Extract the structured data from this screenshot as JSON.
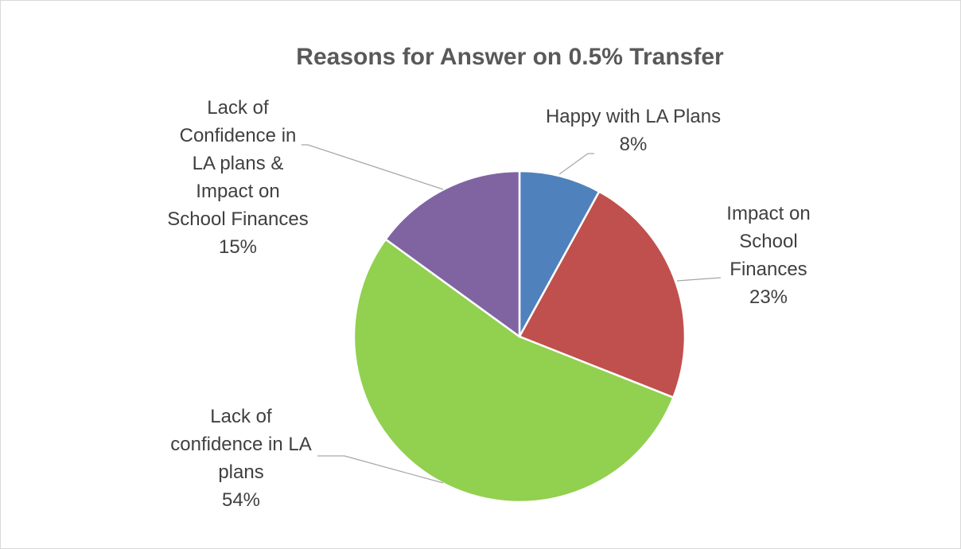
{
  "chart_data": {
    "type": "pie",
    "title": "Reasons for Answer on 0.5% Transfer",
    "categories": [
      "Happy with LA Plans",
      "Impact on School Finances",
      "Lack of confidence in LA plans",
      "Lack of Confidence in LA plans & Impact on School Finances"
    ],
    "values": [
      8,
      23,
      54,
      15
    ],
    "value_labels": [
      "8%",
      "23%",
      "54%",
      "15%"
    ],
    "colors": [
      "#4f81bd",
      "#c0504d",
      "#92d050",
      "#8064a2"
    ]
  }
}
